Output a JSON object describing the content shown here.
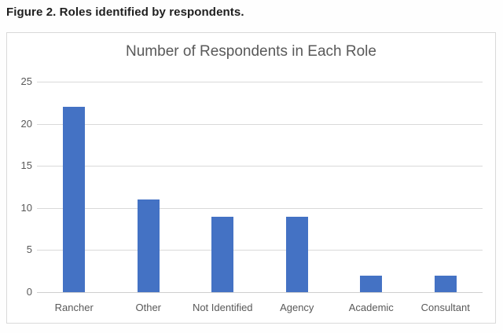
{
  "caption": "Figure 2. Roles identified by respondents.",
  "chart_data": {
    "type": "bar",
    "title": "Number of Respondents in Each Role",
    "categories": [
      "Rancher",
      "Other",
      "Not Identified",
      "Agency",
      "Academic",
      "Consultant"
    ],
    "values": [
      22,
      11,
      9,
      9,
      2,
      2
    ],
    "xlabel": "",
    "ylabel": "",
    "ylim": [
      0,
      25
    ],
    "ytick_step": 5,
    "yticks": [
      0,
      5,
      10,
      15,
      20,
      25
    ],
    "grid": true,
    "legend": false,
    "colors": {
      "bar": "#4472C4",
      "gridline": "#d9d9d9",
      "axis_line": "#cfcfcf",
      "title_text": "#595959",
      "tick_text": "#595959",
      "chart_border": "#d9d9d9",
      "caption_text": "#1f1f1f"
    }
  }
}
